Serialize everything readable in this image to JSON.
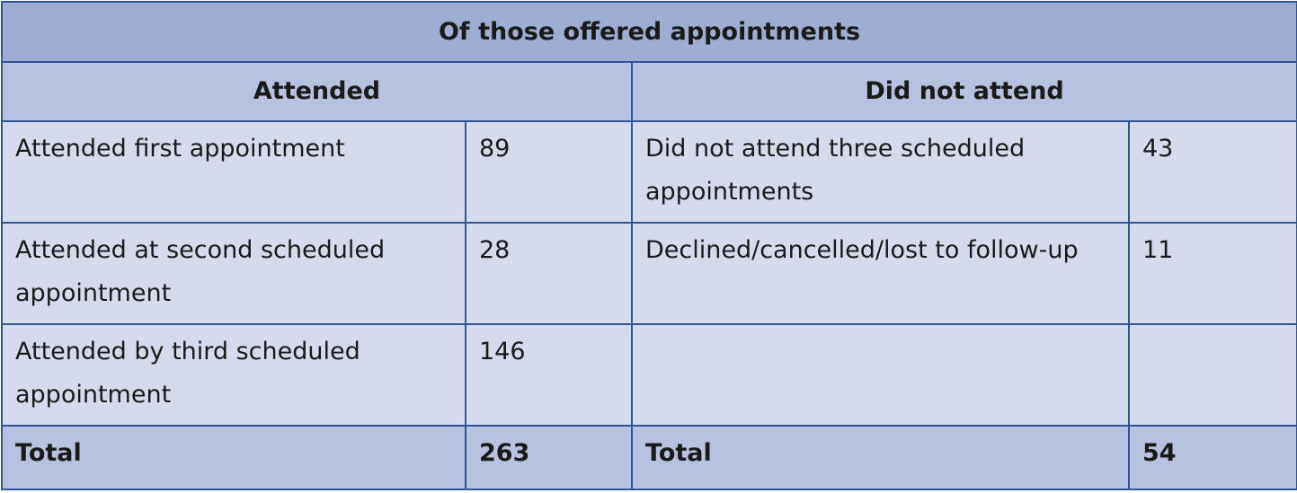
{
  "table": {
    "title": "Of those offered appointments",
    "headers": [
      "Attended",
      "Did not attend"
    ],
    "rows": [
      [
        "Attended first appointment",
        89,
        "Did not attend three scheduled appointments",
        43
      ],
      [
        "Attended at second scheduled appointment",
        28,
        "Declined/cancelled/lost to follow-up",
        11
      ],
      [
        "Attended by third scheduled appointment",
        146,
        null,
        null
      ]
    ],
    "total": [
      "Total",
      263,
      "Total",
      54
    ]
  }
}
